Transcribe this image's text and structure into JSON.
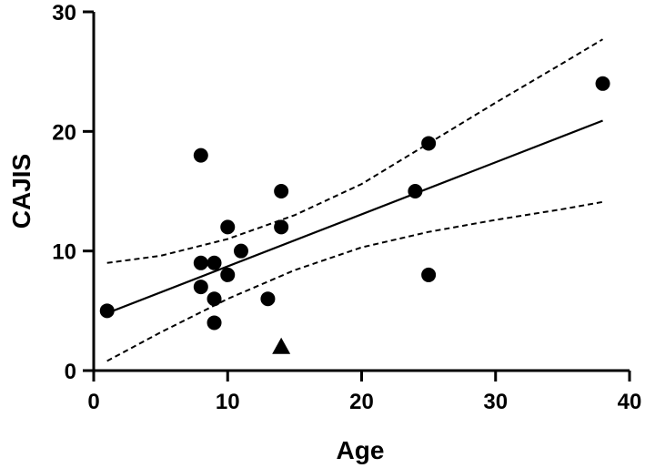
{
  "chart_data": {
    "type": "scatter",
    "xlabel": "Age",
    "ylabel": "CAJIS",
    "xlim": [
      0,
      40
    ],
    "ylim": [
      0,
      30
    ],
    "xticks": [
      0,
      10,
      20,
      30,
      40
    ],
    "yticks": [
      0,
      10,
      20,
      30
    ],
    "grid": false,
    "colors": {
      "points": "#000000",
      "lines": "#000000"
    },
    "series": [
      {
        "marker": "circle",
        "points": [
          {
            "x": 1,
            "y": 5
          },
          {
            "x": 8,
            "y": 18
          },
          {
            "x": 8,
            "y": 9
          },
          {
            "x": 8,
            "y": 7
          },
          {
            "x": 9,
            "y": 9
          },
          {
            "x": 9,
            "y": 6
          },
          {
            "x": 9,
            "y": 4
          },
          {
            "x": 10,
            "y": 12
          },
          {
            "x": 10,
            "y": 8
          },
          {
            "x": 11,
            "y": 10
          },
          {
            "x": 13,
            "y": 6
          },
          {
            "x": 14,
            "y": 15
          },
          {
            "x": 14,
            "y": 12
          },
          {
            "x": 24,
            "y": 15
          },
          {
            "x": 25,
            "y": 19
          },
          {
            "x": 25,
            "y": 8
          },
          {
            "x": 38,
            "y": 24
          }
        ]
      },
      {
        "marker": "triangle",
        "points": [
          {
            "x": 14,
            "y": 2
          }
        ]
      }
    ],
    "regression": {
      "style": "solid",
      "points": [
        {
          "x": 1,
          "y": 4.8
        },
        {
          "x": 38,
          "y": 20.9
        }
      ]
    },
    "confidence_band": {
      "style": "dashed",
      "upper": [
        {
          "x": 1,
          "y": 9.0
        },
        {
          "x": 5,
          "y": 9.6
        },
        {
          "x": 10,
          "y": 11.0
        },
        {
          "x": 15,
          "y": 13.0
        },
        {
          "x": 20,
          "y": 15.6
        },
        {
          "x": 25,
          "y": 19.0
        },
        {
          "x": 30,
          "y": 22.4
        },
        {
          "x": 35,
          "y": 25.7
        },
        {
          "x": 38,
          "y": 27.7
        }
      ],
      "lower": [
        {
          "x": 1,
          "y": 0.8
        },
        {
          "x": 5,
          "y": 3.2
        },
        {
          "x": 10,
          "y": 6.0
        },
        {
          "x": 15,
          "y": 8.4
        },
        {
          "x": 20,
          "y": 10.3
        },
        {
          "x": 25,
          "y": 11.6
        },
        {
          "x": 30,
          "y": 12.6
        },
        {
          "x": 35,
          "y": 13.5
        },
        {
          "x": 38,
          "y": 14.1
        }
      ]
    }
  }
}
